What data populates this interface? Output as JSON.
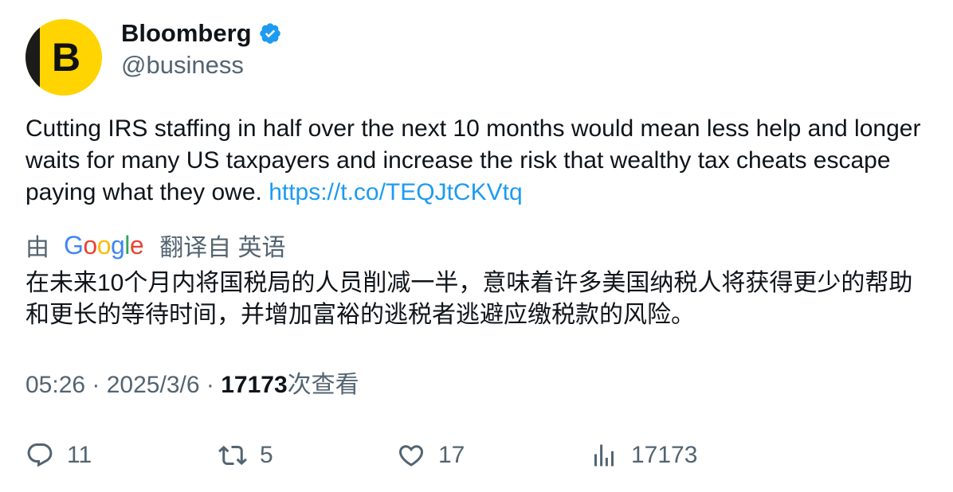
{
  "author": {
    "avatar_letter": "B",
    "display_name": "Bloomberg",
    "handle": "@business",
    "verified": true
  },
  "tweet": {
    "text": "Cutting IRS staffing in half over the next 10 months would mean less help and longer waits for many US taxpayers and increase the risk that wealthy tax cheats escape paying what they owe. ",
    "link": "https://t.co/TEQJtCKVtq"
  },
  "translation": {
    "prefix": "由",
    "provider": "Google",
    "suffix": "翻译自 英语",
    "text": "在未来10个月内将国税局的人员削减一半，意味着许多美国纳税人将获得更少的帮助和更长的等待时间，并增加富裕的逃税者逃避应缴税款的风险。"
  },
  "meta": {
    "time": "05:26",
    "separator": " · ",
    "date": "2025/3/6",
    "views_count": "17173",
    "views_label": "次查看"
  },
  "actions": {
    "replies": "11",
    "retweets": "5",
    "likes": "17",
    "views": "17173"
  },
  "colors": {
    "text_primary": "#0f1419",
    "text_secondary": "#536471",
    "link": "#1d9bf0",
    "verified": "#1d9bf0",
    "avatar_bg": "#ffd400"
  }
}
